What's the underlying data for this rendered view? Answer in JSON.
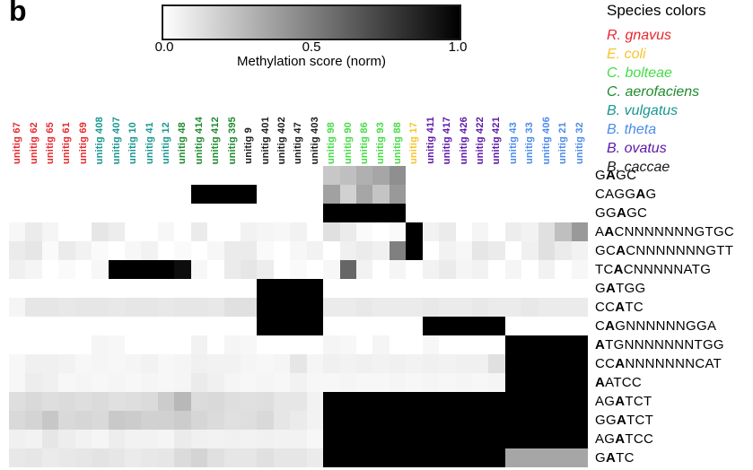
{
  "panel_label": "b",
  "species_legend": {
    "title": "Species colors",
    "items": [
      {
        "name": "R. gnavus"
      },
      {
        "name": "E. coli"
      },
      {
        "name": "C. bolteae"
      },
      {
        "name": "C. aerofaciens"
      },
      {
        "name": "B. vulgatus"
      },
      {
        "name": "B. theta"
      },
      {
        "name": "B. ovatus"
      },
      {
        "name": "B. caccae"
      }
    ]
  },
  "species_colors": {
    "R. gnavus": "#e8282e",
    "E. coli": "#f6c52c",
    "C. bolteae": "#43dd43",
    "C. aerofaciens": "#1f8b2f",
    "B. vulgatus": "#189790",
    "B. theta": "#4b8bea",
    "B. ovatus": "#5c17a8",
    "B. caccae": "#1a1a1a"
  },
  "chart_data": {
    "type": "heatmap",
    "colorbar": {
      "label": "Methylation score (norm)",
      "ticks": [
        "0.0",
        "0.5",
        "1.0"
      ],
      "min": 0,
      "max": 1,
      "gradient": [
        "#ffffff",
        "#000000"
      ]
    },
    "columns": [
      {
        "label": "unitig 67",
        "species": "R. gnavus"
      },
      {
        "label": "unitig 62",
        "species": "R. gnavus"
      },
      {
        "label": "unitig 65",
        "species": "R. gnavus"
      },
      {
        "label": "unitig 61",
        "species": "R. gnavus"
      },
      {
        "label": "unitig 69",
        "species": "R. gnavus"
      },
      {
        "label": "unitig 408",
        "species": "B. vulgatus"
      },
      {
        "label": "unitig 407",
        "species": "B. vulgatus"
      },
      {
        "label": "unitig 10",
        "species": "B. vulgatus"
      },
      {
        "label": "unitig 41",
        "species": "B. vulgatus"
      },
      {
        "label": "unitig 12",
        "species": "B. vulgatus"
      },
      {
        "label": "unitig 48",
        "species": "C. aerofaciens"
      },
      {
        "label": "unitig 414",
        "species": "C. aerofaciens"
      },
      {
        "label": "unitig 412",
        "species": "C. aerofaciens"
      },
      {
        "label": "unitig 395",
        "species": "C. aerofaciens"
      },
      {
        "label": "unitig 9",
        "species": "B. caccae"
      },
      {
        "label": "unitig 401",
        "species": "B. caccae"
      },
      {
        "label": "unitig 402",
        "species": "B. caccae"
      },
      {
        "label": "unitig 47",
        "species": "B. caccae"
      },
      {
        "label": "unitig 403",
        "species": "B. caccae"
      },
      {
        "label": "unitig 98",
        "species": "C. bolteae"
      },
      {
        "label": "unitig 90",
        "species": "C. bolteae"
      },
      {
        "label": "unitig 86",
        "species": "C. bolteae"
      },
      {
        "label": "unitig 93",
        "species": "C. bolteae"
      },
      {
        "label": "unitig 88",
        "species": "C. bolteae"
      },
      {
        "label": "unitig 17",
        "species": "E. coli"
      },
      {
        "label": "unitig 411",
        "species": "B. ovatus"
      },
      {
        "label": "unitig 417",
        "species": "B. ovatus"
      },
      {
        "label": "unitig 426",
        "species": "B. ovatus"
      },
      {
        "label": "unitig 422",
        "species": "B. ovatus"
      },
      {
        "label": "unitig 421",
        "species": "B. ovatus"
      },
      {
        "label": "unitig 43",
        "species": "B. theta"
      },
      {
        "label": "unitig 33",
        "species": "B. theta"
      },
      {
        "label": "unitig 406",
        "species": "B. theta"
      },
      {
        "label": "unitig 21",
        "species": "B. theta"
      },
      {
        "label": "unitig 32",
        "species": "B. theta"
      }
    ],
    "rows": [
      {
        "pre": "G",
        "bold": "A",
        "post": "GC"
      },
      {
        "pre": "CAGG",
        "bold": "A",
        "post": "G"
      },
      {
        "pre": "GG",
        "bold": "A",
        "post": "GC"
      },
      {
        "pre": "A",
        "bold": "A",
        "post": "CNNNNNNNGTGC"
      },
      {
        "pre": "GC",
        "bold": "A",
        "post": "CNNNNNNNGTT"
      },
      {
        "pre": "TC",
        "bold": "A",
        "post": "CNNNNNATG"
      },
      {
        "pre": "G",
        "bold": "A",
        "post": "TGG"
      },
      {
        "pre": "CC",
        "bold": "A",
        "post": "TC"
      },
      {
        "pre": "C",
        "bold": "A",
        "post": "GNNNNNNGGA"
      },
      {
        "pre": "",
        "bold": "A",
        "post": "TGNNNNNNNTGG"
      },
      {
        "pre": "CC",
        "bold": "A",
        "post": "NNNNNNNCAT"
      },
      {
        "pre": "",
        "bold": "A",
        "post": "ATCC"
      },
      {
        "pre": "AG",
        "bold": "A",
        "post": "TCT"
      },
      {
        "pre": "GG",
        "bold": "A",
        "post": "TCT"
      },
      {
        "pre": "AG",
        "bold": "A",
        "post": "TCC"
      },
      {
        "pre": "G",
        "bold": "A",
        "post": "TC"
      }
    ],
    "values": [
      [
        0,
        0,
        0,
        0,
        0,
        0,
        0,
        0,
        0,
        0,
        0,
        0,
        0,
        0,
        0,
        0,
        0,
        0,
        0,
        0.22,
        0.25,
        0.31,
        0.35,
        0.44,
        0,
        0,
        0,
        0,
        0,
        0,
        0,
        0,
        0,
        0,
        0
      ],
      [
        0,
        0,
        0,
        0,
        0,
        0,
        0,
        0,
        0,
        0,
        0,
        1,
        1,
        1,
        1,
        0,
        0,
        0,
        0,
        0.37,
        0.18,
        0.35,
        0.23,
        0.4,
        0,
        0,
        0,
        0,
        0,
        0,
        0,
        0,
        0,
        0,
        0
      ],
      [
        0,
        0,
        0,
        0,
        0,
        0,
        0,
        0,
        0,
        0,
        0,
        0,
        0,
        0,
        0,
        0,
        0,
        0,
        0,
        1,
        1,
        1,
        1,
        1,
        0,
        0,
        0,
        0,
        0,
        0,
        0,
        0,
        0,
        0,
        0
      ],
      [
        0.03,
        0.08,
        0.04,
        0,
        0,
        0.1,
        0.07,
        0,
        0,
        0.03,
        0,
        0.08,
        0,
        0,
        0.05,
        0.04,
        0.03,
        0.05,
        0,
        0.12,
        0.08,
        0.02,
        0,
        0.02,
        1,
        0.05,
        0.08,
        0,
        0.04,
        0,
        0.07,
        0.05,
        0.12,
        0.25,
        0.4
      ],
      [
        0.08,
        0.1,
        0.02,
        0.08,
        0.05,
        0.02,
        0,
        0.03,
        0.05,
        0,
        0.02,
        0,
        0.03,
        0.08,
        0.08,
        0.02,
        0,
        0.03,
        0.05,
        0,
        0.06,
        0.08,
        0.06,
        0.5,
        1,
        0,
        0.05,
        0.03,
        0.1,
        0.08,
        0,
        0.06,
        0.12,
        0.08,
        0.05
      ],
      [
        0.06,
        0.04,
        0,
        0.02,
        0,
        0.03,
        1,
        1,
        1,
        1,
        0.95,
        0.03,
        0,
        0.08,
        0.1,
        0.07,
        0,
        0.02,
        0,
        0.03,
        0.6,
        0.05,
        0,
        0.04,
        0,
        0.05,
        0.08,
        0.04,
        0.05,
        0,
        0.04,
        0,
        0.05,
        0,
        0.03
      ],
      [
        0,
        0,
        0,
        0,
        0,
        0,
        0,
        0,
        0,
        0,
        0,
        0,
        0,
        0,
        0,
        1,
        1,
        1,
        1,
        0,
        0,
        0,
        0,
        0,
        0,
        0,
        0,
        0,
        0,
        0,
        0,
        0,
        0,
        0,
        0
      ],
      [
        0.04,
        0.1,
        0.1,
        0.09,
        0.1,
        0.1,
        0.09,
        0.1,
        0.1,
        0.09,
        0.1,
        0.1,
        0.09,
        0.12,
        0.12,
        1,
        1,
        1,
        1,
        0.08,
        0.08,
        0.09,
        0.08,
        0.08,
        0.08,
        0.09,
        0.08,
        0.08,
        0.09,
        0.08,
        0.08,
        0.09,
        0.08,
        0.08,
        0.08
      ],
      [
        0,
        0,
        0,
        0,
        0,
        0,
        0,
        0,
        0,
        0,
        0,
        0,
        0,
        0,
        0,
        1,
        1,
        1,
        1,
        0,
        0,
        0,
        0,
        0,
        0,
        1,
        1,
        1,
        1,
        1,
        0,
        0,
        0,
        0,
        0
      ],
      [
        0,
        0,
        0,
        0,
        0,
        0.04,
        0.03,
        0,
        0,
        0,
        0,
        0.05,
        0,
        0.04,
        0.03,
        0,
        0,
        0,
        0,
        0.04,
        0.03,
        0,
        0.04,
        0,
        0,
        0.03,
        0,
        0,
        0,
        0,
        1,
        1,
        1,
        1,
        1
      ],
      [
        0.03,
        0.06,
        0.06,
        0.05,
        0.03,
        0.04,
        0.03,
        0.04,
        0.05,
        0.03,
        0.04,
        0.06,
        0.05,
        0.05,
        0.04,
        0.03,
        0.04,
        0.1,
        0.04,
        0.06,
        0.05,
        0.06,
        0.05,
        0.06,
        0.05,
        0.06,
        0.05,
        0.06,
        0.06,
        0.12,
        1,
        1,
        1,
        1,
        1
      ],
      [
        0.03,
        0.07,
        0.06,
        0.03,
        0.04,
        0.03,
        0.04,
        0.03,
        0.04,
        0.03,
        0.04,
        0.08,
        0.06,
        0.04,
        0.03,
        0.04,
        0.03,
        0.05,
        0.03,
        0.03,
        0.04,
        0.03,
        0.03,
        0.04,
        0.03,
        0.04,
        0.03,
        0.04,
        0.03,
        0.04,
        1,
        1,
        1,
        1,
        1
      ],
      [
        0.13,
        0.15,
        0.13,
        0.14,
        0.13,
        0.14,
        0.12,
        0.13,
        0.14,
        0.2,
        0.28,
        0.14,
        0.15,
        0.13,
        0.12,
        0.13,
        0.1,
        0.1,
        0.05,
        1,
        1,
        1,
        1,
        1,
        1,
        1,
        1,
        1,
        1,
        1,
        1,
        1,
        1,
        1,
        1
      ],
      [
        0.15,
        0.17,
        0.22,
        0.15,
        0.16,
        0.15,
        0.21,
        0.2,
        0.18,
        0.18,
        0.2,
        0.16,
        0.14,
        0.12,
        0.13,
        0.15,
        0.1,
        0.08,
        0.05,
        1,
        1,
        1,
        1,
        1,
        1,
        1,
        1,
        1,
        1,
        1,
        1,
        1,
        1,
        1,
        1
      ],
      [
        0.06,
        0.05,
        0.1,
        0.07,
        0.05,
        0.04,
        0.07,
        0.05,
        0.05,
        0.04,
        0.08,
        0.06,
        0.05,
        0.06,
        0.05,
        0.06,
        0.05,
        0.05,
        0.03,
        1,
        1,
        1,
        1,
        1,
        1,
        1,
        1,
        1,
        1,
        1,
        1,
        1,
        1,
        1,
        1
      ],
      [
        0.09,
        0.1,
        0.08,
        0.09,
        0.1,
        0.11,
        0.1,
        0.08,
        0.09,
        0.1,
        0.14,
        0.17,
        0.12,
        0.1,
        0.1,
        0.12,
        0.1,
        0.1,
        0.08,
        1,
        1,
        1,
        1,
        1,
        1,
        1,
        1,
        1,
        1,
        1,
        0.35,
        0.35,
        0.35,
        0.35,
        0.35
      ]
    ]
  }
}
